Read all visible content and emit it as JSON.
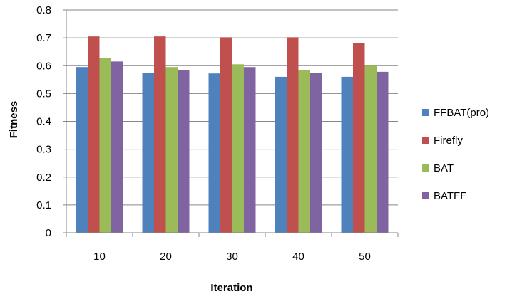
{
  "chart_data": {
    "type": "bar",
    "title": "",
    "xlabel": "Iteration",
    "ylabel": "Fitness",
    "categories": [
      "10",
      "20",
      "30",
      "40",
      "50"
    ],
    "ylim": [
      0,
      0.8
    ],
    "yticks": [
      "0",
      "0.1",
      "0.2",
      "0.3",
      "0.4",
      "0.5",
      "0.6",
      "0.7",
      "0.8"
    ],
    "grid": true,
    "legend_position": "right",
    "series": [
      {
        "name": "FFBAT(pro)",
        "color": "#4F81BD",
        "values": [
          0.595,
          0.575,
          0.572,
          0.56,
          0.56
        ]
      },
      {
        "name": "Firefly",
        "color": "#C0504D",
        "values": [
          0.705,
          0.705,
          0.702,
          0.702,
          0.68
        ]
      },
      {
        "name": "BAT",
        "color": "#9BBB59",
        "values": [
          0.627,
          0.595,
          0.605,
          0.583,
          0.6
        ]
      },
      {
        "name": "BATFF",
        "color": "#8064A2",
        "values": [
          0.615,
          0.585,
          0.595,
          0.575,
          0.578
        ]
      }
    ]
  }
}
